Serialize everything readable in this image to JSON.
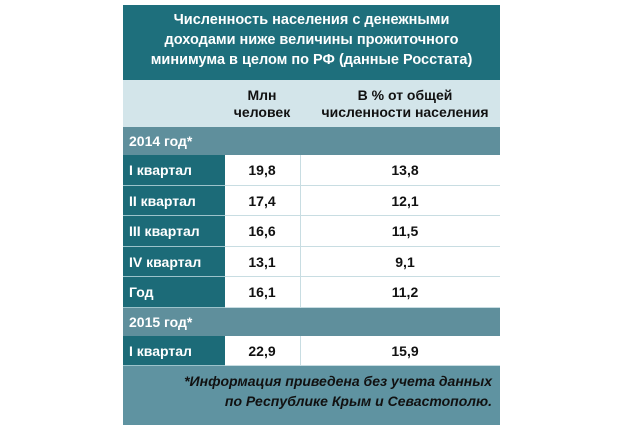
{
  "title": [
    "Численность населения с денежными",
    "доходами ниже величины прожиточного",
    "минимума в целом по РФ (данные Росстата)"
  ],
  "columns": [
    [
      "Млн",
      "человек"
    ],
    [
      "В % от общей",
      "численности населения"
    ]
  ],
  "sections": [
    {
      "label": "2014 год*",
      "rows": [
        {
          "label": "I квартал",
          "values": [
            "19,8",
            "13,8"
          ]
        },
        {
          "label": "II квартал",
          "values": [
            "17,4",
            "12,1"
          ]
        },
        {
          "label": "III квартал",
          "values": [
            "16,6",
            "11,5"
          ]
        },
        {
          "label": "IV квартал",
          "values": [
            "13,1",
            "9,1"
          ]
        },
        {
          "label": "Год",
          "values": [
            "16,1",
            "11,2"
          ]
        }
      ]
    },
    {
      "label": "2015 год*",
      "rows": [
        {
          "label": "I квартал",
          "values": [
            "22,9",
            "15,9"
          ]
        }
      ]
    }
  ],
  "footnote": [
    "*Информация приведена без учета данных",
    "по Республике Крым и Севастополю."
  ]
}
